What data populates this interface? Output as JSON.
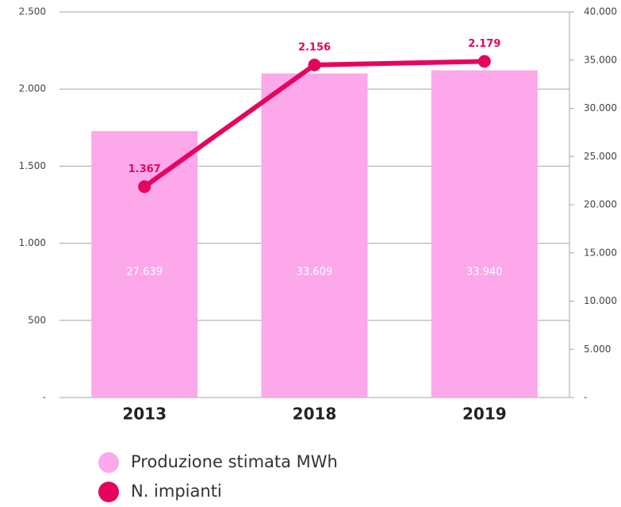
{
  "chart_data": {
    "type": "bar",
    "categories": [
      "2013",
      "2018",
      "2019"
    ],
    "series": [
      {
        "name": "Produzione stimata MWh",
        "type": "bar",
        "axis": "y2",
        "color": "#fca8ea",
        "values": [
          27639,
          33609,
          33940
        ],
        "value_labels": [
          "27.639",
          "33.609",
          "33.940"
        ]
      },
      {
        "name": "N. impianti",
        "type": "line",
        "axis": "y",
        "color": "#e6045f",
        "values": [
          1367,
          2156,
          2179
        ],
        "value_labels": [
          "1.367",
          "2.156",
          "2.179"
        ]
      }
    ],
    "ylim": [
      0,
      2500
    ],
    "yticks": [
      {
        "value": 0,
        "label": "-"
      },
      500,
      {
        "value": 1000,
        "label": "1.000"
      },
      {
        "value": 1500,
        "label": "1.500"
      },
      {
        "value": 2000,
        "label": "2.000"
      },
      {
        "value": 2500,
        "label": "2.500"
      }
    ],
    "y2lim": [
      0,
      40000
    ],
    "y2ticks": [
      {
        "value": 0,
        "label": "-"
      },
      {
        "value": 5000,
        "label": "5.000"
      },
      {
        "value": 10000,
        "label": "10.000"
      },
      {
        "value": 15000,
        "label": "15.000"
      },
      {
        "value": 20000,
        "label": "20.000"
      },
      {
        "value": 25000,
        "label": "25.000"
      },
      {
        "value": 30000,
        "label": "30.000"
      },
      {
        "value": 35000,
        "label": "35.000"
      },
      {
        "value": 40000,
        "label": "40.000"
      }
    ],
    "grid": true,
    "legend": "bottom"
  }
}
